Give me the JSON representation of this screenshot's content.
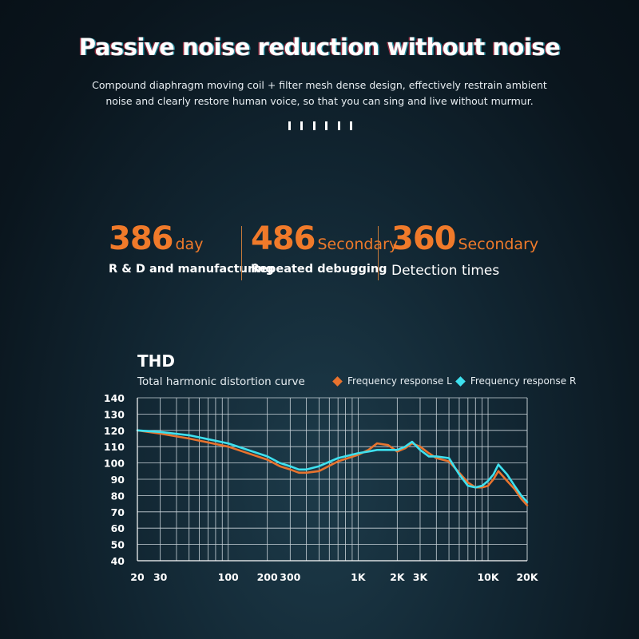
{
  "headline": "Passive noise reduction without noise",
  "description": {
    "line1": "Compound diaphragm moving coil + filter mesh dense design, effectively restrain ambient",
    "line2": "noise and clearly restore human voice, so that you can sing and live without murmur."
  },
  "stats": [
    {
      "number": "386",
      "unit": "day",
      "label": "R & D and manufacturing"
    },
    {
      "number": "486",
      "unit": "Secondary",
      "label": "Repeated debugging"
    },
    {
      "number": "360",
      "unit": "Secondary",
      "label": "Detection times"
    }
  ],
  "thd": {
    "title": "THD",
    "subtitle": "Total harmonic distortion curve"
  },
  "colors": {
    "accent": "#f07a2a",
    "series_l": "#e8732e",
    "series_r": "#3ee0ee",
    "grid": "#c9d3d9"
  },
  "chart_data": {
    "type": "line",
    "x_scale": "log",
    "xlim": [
      20,
      20000
    ],
    "ylim": [
      40,
      140
    ],
    "y_ticks": [
      140,
      130,
      120,
      110,
      100,
      90,
      80,
      70,
      60,
      50,
      40
    ],
    "x_ticks": [
      {
        "value": 20,
        "label": "20"
      },
      {
        "value": 30,
        "label": "30"
      },
      {
        "value": 100,
        "label": "100"
      },
      {
        "value": 200,
        "label": "200"
      },
      {
        "value": 300,
        "label": "300"
      },
      {
        "value": 1000,
        "label": "1K"
      },
      {
        "value": 2000,
        "label": "2K"
      },
      {
        "value": 3000,
        "label": "3K"
      },
      {
        "value": 10000,
        "label": "10K"
      },
      {
        "value": 20000,
        "label": "20K"
      }
    ],
    "grid": true,
    "legend_position": "top-right",
    "series": [
      {
        "name": "Frequency response L",
        "color": "#e8732e",
        "x": [
          20,
          30,
          50,
          100,
          200,
          250,
          300,
          350,
          400,
          500,
          700,
          1000,
          1200,
          1400,
          1700,
          2000,
          2300,
          2600,
          3000,
          3500,
          4000,
          5000,
          6000,
          7000,
          8000,
          9000,
          10000,
          11000,
          12000,
          14000,
          16000,
          18000,
          20000
        ],
        "y": [
          120,
          118,
          115,
          110,
          102,
          98,
          96,
          94,
          94,
          95,
          101,
          105,
          108,
          112,
          111,
          107,
          109,
          112,
          110,
          106,
          103,
          101,
          94,
          88,
          85,
          85,
          86,
          90,
          95,
          89,
          84,
          78,
          74
        ]
      },
      {
        "name": "Frequency response R",
        "color": "#3ee0ee",
        "x": [
          20,
          30,
          50,
          100,
          200,
          250,
          300,
          350,
          400,
          500,
          700,
          1000,
          1200,
          1400,
          1700,
          2000,
          2300,
          2600,
          3000,
          3500,
          4000,
          5000,
          6000,
          7000,
          8000,
          9000,
          10000,
          11000,
          12000,
          14000,
          16000,
          18000,
          20000
        ],
        "y": [
          120,
          119,
          117,
          112,
          104,
          100,
          98,
          96,
          96,
          98,
          103,
          106,
          107,
          108,
          108,
          108,
          110,
          113,
          108,
          104,
          104,
          103,
          93,
          86,
          85,
          86,
          89,
          93,
          99,
          93,
          86,
          80,
          76
        ]
      }
    ]
  }
}
